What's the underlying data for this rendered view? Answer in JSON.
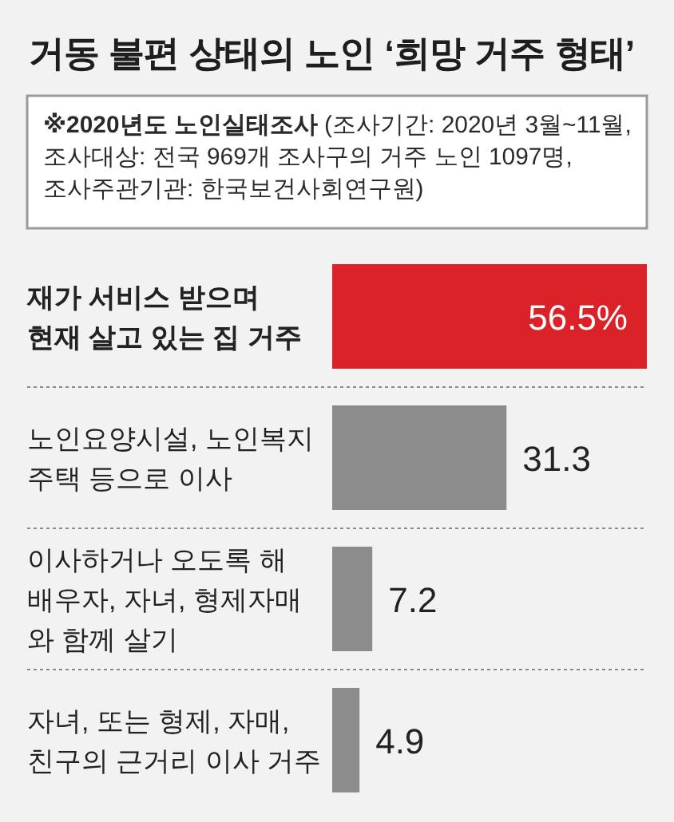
{
  "chart_data": {
    "type": "bar",
    "orientation": "horizontal",
    "title": "거동 불편 상태의 노인 ‘희망 거주 형태’",
    "subtitle": "**※2020년도 노인실태조사** (조사기간: 2020년 3월~11월,\n조사대상: 전국 969개 조사구의 거주 노인 1097명,\n조사주관기관: 한국보건사회연구원)",
    "categories": [
      "재가 서비스 받으며\n현재 살고 있는 집 거주",
      "노인요양시설, 노인복지\n주택 등으로 이사",
      "이사하거나 오도록 해\n배우자, 자녀, 형제자매\n와 함께 살기",
      "자녀, 또는 형제, 자매,\n친구의 근거리 이사 거주"
    ],
    "values": [
      56.5,
      31.3,
      7.2,
      4.9
    ],
    "colors": [
      "#dc2229",
      "#8c8c8c",
      "#8c8c8c",
      "#8c8c8c"
    ],
    "value_labels": [
      "56.5%",
      "31.3",
      "7.2",
      "4.9"
    ],
    "grid": "y",
    "tick_labels": "y"
  }
}
